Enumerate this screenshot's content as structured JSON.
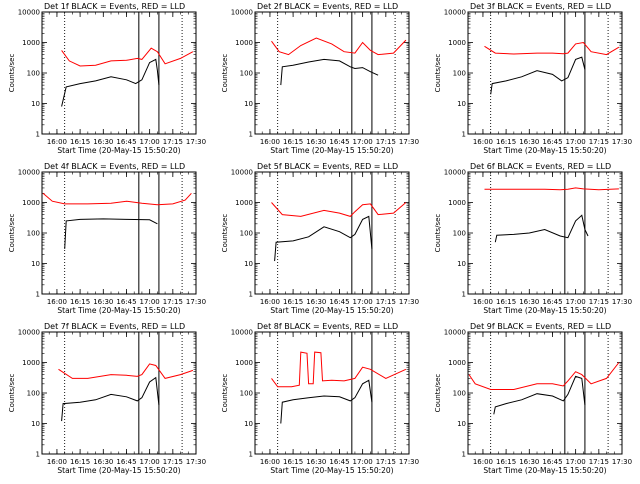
{
  "figure": {
    "background": "#ffffff",
    "colors": {
      "events": "#000000",
      "lld": "#ff0000",
      "axis": "#000000"
    }
  },
  "chart_data": [
    {
      "type": "line",
      "title": "Det 1f BLACK = Events, RED = LLD",
      "xlabel": "Start Time (20-May-15 15:50:20)",
      "ylabel": "Counts/sec",
      "yscale": "log",
      "ylim": [
        1,
        10000
      ],
      "xlim": [
        "15:50:20",
        "17:30:00"
      ],
      "x_ticks": [
        "16:00",
        "16:15",
        "16:30",
        "16:45",
        "17:00",
        "17:15",
        "17:30"
      ],
      "y_ticks": [
        "1",
        "10",
        "100",
        "1000",
        "10000"
      ],
      "vlines_dotted": [
        "16:05",
        "17:21"
      ],
      "vlines_solid": [
        "16:53",
        "17:06"
      ],
      "series": [
        {
          "name": "Events",
          "color": "#000000",
          "x": [
            "16:03",
            "16:06",
            "16:15",
            "16:25",
            "16:35",
            "16:45",
            "16:51",
            "16:55",
            "17:00",
            "17:04",
            "17:05",
            "17:06"
          ],
          "y": [
            8,
            35,
            45,
            55,
            75,
            60,
            45,
            60,
            220,
            280,
            120,
            40
          ]
        },
        {
          "name": "LLD",
          "color": "#ff0000",
          "x": [
            "16:03",
            "16:08",
            "16:15",
            "16:25",
            "16:35",
            "16:45",
            "16:52",
            "16:55",
            "17:01",
            "17:05",
            "17:10",
            "17:20",
            "17:28"
          ],
          "y": [
            550,
            250,
            170,
            180,
            250,
            260,
            300,
            280,
            650,
            500,
            200,
            300,
            500
          ]
        }
      ]
    },
    {
      "type": "line",
      "title": "Det 2f BLACK = Events, RED = LLD",
      "xlabel": "Start Time (20-May-15 15:50:20)",
      "ylabel": "Counts/sec",
      "yscale": "log",
      "ylim": [
        1,
        10000
      ],
      "xlim": [
        "15:50:20",
        "17:30:00"
      ],
      "x_ticks": [
        "16:00",
        "16:15",
        "16:30",
        "16:45",
        "17:00",
        "17:15",
        "17:30"
      ],
      "y_ticks": [
        "1",
        "10",
        "100",
        "1000",
        "10000"
      ],
      "vlines_dotted": [
        "16:05",
        "17:21"
      ],
      "vlines_solid": [
        "16:53",
        "17:06"
      ],
      "series": [
        {
          "name": "Events",
          "color": "#000000",
          "x": [
            "16:07",
            "16:08",
            "16:15",
            "16:25",
            "16:35",
            "16:45",
            "16:52",
            "16:55",
            "17:00",
            "17:05",
            "17:10"
          ],
          "y": [
            40,
            160,
            180,
            230,
            280,
            250,
            160,
            140,
            150,
            110,
            85
          ]
        },
        {
          "name": "LLD",
          "color": "#ff0000",
          "x": [
            "16:01",
            "16:06",
            "16:12",
            "16:20",
            "16:30",
            "16:40",
            "16:48",
            "16:55",
            "17:00",
            "17:05",
            "17:10",
            "17:20",
            "17:28"
          ],
          "y": [
            1100,
            500,
            400,
            800,
            1400,
            900,
            500,
            450,
            1000,
            550,
            400,
            450,
            1200
          ]
        }
      ]
    },
    {
      "type": "line",
      "title": "Det 3f BLACK = Events, RED = LLD",
      "xlabel": "Start Time (20-May-15 15:50:20)",
      "ylabel": "Counts/sec",
      "yscale": "log",
      "ylim": [
        1,
        10000
      ],
      "xlim": [
        "15:50:20",
        "17:30:00"
      ],
      "x_ticks": [
        "16:00",
        "16:15",
        "16:30",
        "16:45",
        "17:00",
        "17:15",
        "17:30"
      ],
      "y_ticks": [
        "1",
        "10",
        "100",
        "1000",
        "10000"
      ],
      "vlines_dotted": [
        "16:05",
        "17:21"
      ],
      "vlines_solid": [
        "16:53",
        "17:06"
      ],
      "series": [
        {
          "name": "Events",
          "color": "#000000",
          "x": [
            "16:05",
            "16:06",
            "16:15",
            "16:25",
            "16:35",
            "16:45",
            "16:51",
            "16:55",
            "17:00",
            "17:04",
            "17:06"
          ],
          "y": [
            20,
            45,
            55,
            75,
            120,
            90,
            55,
            70,
            280,
            330,
            130
          ]
        },
        {
          "name": "LLD",
          "color": "#ff0000",
          "x": [
            "16:01",
            "16:08",
            "16:20",
            "16:35",
            "16:45",
            "16:52",
            "16:55",
            "17:00",
            "17:05",
            "17:10",
            "17:20",
            "17:28"
          ],
          "y": [
            750,
            450,
            420,
            450,
            450,
            430,
            450,
            900,
            1000,
            500,
            400,
            700
          ]
        }
      ]
    },
    {
      "type": "line",
      "title": "Det 4f BLACK = Events, RED = LLD",
      "xlabel": "Start Time (20-May-15 15:50:20)",
      "ylabel": "Counts/sec",
      "yscale": "log",
      "ylim": [
        1,
        10000
      ],
      "xlim": [
        "15:50:20",
        "17:30:00"
      ],
      "x_ticks": [
        "16:00",
        "16:15",
        "16:30",
        "16:45",
        "17:00",
        "17:15",
        "17:30"
      ],
      "y_ticks": [
        "1",
        "10",
        "100",
        "1000",
        "10000"
      ],
      "vlines_dotted": [
        "16:05",
        "17:21"
      ],
      "vlines_solid": [
        "16:53",
        "17:06"
      ],
      "series": [
        {
          "name": "Events",
          "color": "#000000",
          "x": [
            "16:05",
            "16:06",
            "16:15",
            "16:30",
            "16:45",
            "17:00",
            "17:05"
          ],
          "y": [
            30,
            250,
            280,
            290,
            280,
            270,
            200
          ]
        },
        {
          "name": "LLD",
          "color": "#ff0000",
          "x": [
            "15:51",
            "15:57",
            "16:05",
            "16:20",
            "16:35",
            "16:45",
            "16:55",
            "17:05",
            "17:15",
            "17:23",
            "17:27"
          ],
          "y": [
            2000,
            1100,
            900,
            900,
            950,
            1100,
            950,
            850,
            900,
            1200,
            2000
          ]
        }
      ]
    },
    {
      "type": "line",
      "title": "Det 5f BLACK = Events, RED = LLD",
      "xlabel": "Start Time (20-May-15 15:50:20)",
      "ylabel": "Counts/sec",
      "yscale": "log",
      "ylim": [
        1,
        10000
      ],
      "xlim": [
        "15:50:20",
        "17:30:00"
      ],
      "x_ticks": [
        "16:00",
        "16:15",
        "16:30",
        "16:45",
        "17:00",
        "17:15",
        "17:30"
      ],
      "y_ticks": [
        "1",
        "10",
        "100",
        "1000",
        "10000"
      ],
      "vlines_dotted": [
        "16:05",
        "17:21"
      ],
      "vlines_solid": [
        "16:53",
        "17:06"
      ],
      "series": [
        {
          "name": "Events",
          "color": "#000000",
          "x": [
            "16:03",
            "16:04",
            "16:15",
            "16:25",
            "16:35",
            "16:45",
            "16:52",
            "16:55",
            "17:00",
            "17:04",
            "17:06"
          ],
          "y": [
            12,
            50,
            55,
            75,
            160,
            110,
            70,
            90,
            280,
            350,
            30
          ]
        },
        {
          "name": "LLD",
          "color": "#ff0000",
          "x": [
            "16:01",
            "16:08",
            "16:20",
            "16:35",
            "16:45",
            "16:52",
            "16:55",
            "17:00",
            "17:05",
            "17:10",
            "17:20",
            "17:28"
          ],
          "y": [
            1000,
            400,
            350,
            550,
            450,
            350,
            500,
            850,
            900,
            400,
            450,
            1000
          ]
        }
      ]
    },
    {
      "type": "line",
      "title": "Det 6f BLACK = Events, RED = LLD",
      "xlabel": "Start Time (20-May-15 15:50:20)",
      "ylabel": "Counts/sec",
      "yscale": "log",
      "ylim": [
        1,
        10000
      ],
      "xlim": [
        "15:50:20",
        "17:30:00"
      ],
      "x_ticks": [
        "16:00",
        "16:15",
        "16:30",
        "16:45",
        "17:00",
        "17:15",
        "17:30"
      ],
      "y_ticks": [
        "1",
        "10",
        "100",
        "1000",
        "10000"
      ],
      "vlines_dotted": [
        "16:05",
        "17:21"
      ],
      "vlines_solid": [
        "16:53",
        "17:06"
      ],
      "series": [
        {
          "name": "Events",
          "color": "#000000",
          "x": [
            "16:08",
            "16:09",
            "16:20",
            "16:30",
            "16:40",
            "16:50",
            "16:55",
            "17:00",
            "17:04",
            "17:06",
            "17:08"
          ],
          "y": [
            50,
            85,
            90,
            100,
            130,
            80,
            70,
            250,
            380,
            130,
            80
          ]
        },
        {
          "name": "LLD",
          "color": "#ff0000",
          "x": [
            "16:01",
            "16:20",
            "16:40",
            "16:50",
            "16:55",
            "17:00",
            "17:05",
            "17:15",
            "17:28"
          ],
          "y": [
            2700,
            2700,
            2700,
            2600,
            2700,
            3000,
            2800,
            2600,
            2800
          ]
        }
      ]
    },
    {
      "type": "line",
      "title": "Det 7f BLACK = Events, RED = LLD",
      "xlabel": "Start Time (20-May-15 15:50:20)",
      "ylabel": "Counts/sec",
      "yscale": "log",
      "ylim": [
        1,
        10000
      ],
      "xlim": [
        "15:50:20",
        "17:30:00"
      ],
      "x_ticks": [
        "16:00",
        "16:15",
        "16:30",
        "16:45",
        "17:00",
        "17:15",
        "17:30"
      ],
      "y_ticks": [
        "1",
        "10",
        "100",
        "1000",
        "10000"
      ],
      "vlines_dotted": [
        "16:05",
        "17:21"
      ],
      "vlines_solid": [
        "16:53",
        "17:06"
      ],
      "series": [
        {
          "name": "Events",
          "color": "#000000",
          "x": [
            "16:03",
            "16:04",
            "16:15",
            "16:25",
            "16:35",
            "16:45",
            "16:52",
            "16:55",
            "17:00",
            "17:04",
            "17:06"
          ],
          "y": [
            12,
            45,
            50,
            60,
            90,
            75,
            55,
            70,
            230,
            320,
            40
          ]
        },
        {
          "name": "LLD",
          "color": "#ff0000",
          "x": [
            "16:01",
            "16:10",
            "16:20",
            "16:35",
            "16:45",
            "16:52",
            "16:55",
            "17:00",
            "17:04",
            "17:10",
            "17:20",
            "17:28"
          ],
          "y": [
            600,
            300,
            300,
            400,
            380,
            350,
            400,
            900,
            800,
            300,
            400,
            550
          ]
        }
      ]
    },
    {
      "type": "line",
      "title": "Det 8f BLACK = Events, RED = LLD",
      "xlabel": "Start Time (20-May-15 15:50:20)",
      "ylabel": "Counts/sec",
      "yscale": "log",
      "ylim": [
        1,
        10000
      ],
      "xlim": [
        "15:50:20",
        "17:30:00"
      ],
      "x_ticks": [
        "16:00",
        "16:15",
        "16:30",
        "16:45",
        "17:00",
        "17:15",
        "17:30"
      ],
      "y_ticks": [
        "1",
        "10",
        "100",
        "1000",
        "10000"
      ],
      "vlines_dotted": [
        "16:05",
        "17:21"
      ],
      "vlines_solid": [
        "16:53",
        "17:06"
      ],
      "series": [
        {
          "name": "Events",
          "color": "#000000",
          "x": [
            "16:07",
            "16:08",
            "16:15",
            "16:25",
            "16:35",
            "16:45",
            "16:52",
            "16:55",
            "17:00",
            "17:04",
            "17:06"
          ],
          "y": [
            10,
            50,
            60,
            70,
            80,
            75,
            55,
            70,
            200,
            260,
            50
          ]
        },
        {
          "name": "LLD",
          "color": "#ff0000",
          "x": [
            "16:01",
            "16:05",
            "16:14",
            "16:19",
            "16:20",
            "16:24",
            "16:25",
            "16:28",
            "16:29",
            "16:33",
            "16:34",
            "16:40",
            "16:48",
            "16:55",
            "17:00",
            "17:05",
            "17:15",
            "17:28"
          ],
          "y": [
            300,
            160,
            160,
            180,
            2200,
            2000,
            200,
            200,
            2200,
            2100,
            250,
            260,
            250,
            300,
            700,
            600,
            300,
            600
          ]
        }
      ]
    },
    {
      "type": "line",
      "title": "Det 9f BLACK = Events, RED = LLD",
      "xlabel": "Start Time (20-May-15 15:50:20)",
      "ylabel": "Counts/sec",
      "yscale": "log",
      "ylim": [
        1,
        10000
      ],
      "xlim": [
        "15:50:20",
        "17:30:00"
      ],
      "x_ticks": [
        "16:00",
        "16:15",
        "16:30",
        "16:45",
        "17:00",
        "17:15",
        "17:30"
      ],
      "y_ticks": [
        "1",
        "10",
        "100",
        "1000",
        "10000"
      ],
      "vlines_dotted": [
        "16:05",
        "17:21"
      ],
      "vlines_solid": [
        "16:53",
        "17:06"
      ],
      "series": [
        {
          "name": "Events",
          "color": "#000000",
          "x": [
            "16:07",
            "16:08",
            "16:15",
            "16:25",
            "16:35",
            "16:45",
            "16:52",
            "16:55",
            "17:00",
            "17:04",
            "17:06"
          ],
          "y": [
            20,
            35,
            45,
            60,
            95,
            80,
            55,
            90,
            350,
            300,
            40
          ]
        },
        {
          "name": "LLD",
          "color": "#ff0000",
          "x": [
            "15:51",
            "15:55",
            "16:05",
            "16:20",
            "16:35",
            "16:45",
            "16:52",
            "16:55",
            "17:00",
            "17:04",
            "17:10",
            "17:20",
            "17:28"
          ],
          "y": [
            400,
            200,
            130,
            130,
            200,
            200,
            170,
            250,
            500,
            400,
            200,
            300,
            1000
          ]
        }
      ]
    }
  ]
}
